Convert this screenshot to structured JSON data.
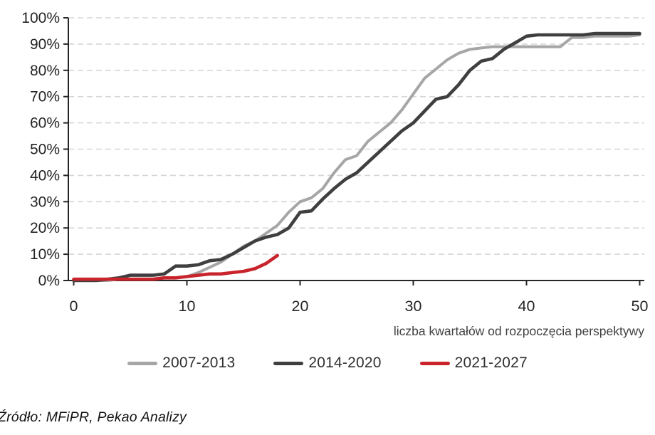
{
  "chart_data": {
    "type": "line",
    "title": "",
    "xlabel": "liczba kwartałów od rozpoczęcia perspektywy",
    "ylabel": "",
    "xlim": [
      0,
      50
    ],
    "ylim": [
      0,
      100
    ],
    "x_ticks": [
      0,
      10,
      20,
      30,
      40,
      50
    ],
    "y_ticks": [
      "0%",
      "10%",
      "20%",
      "30%",
      "40%",
      "50%",
      "60%",
      "70%",
      "80%",
      "90%",
      "100%"
    ],
    "grid": "horizontal-dashed",
    "gridline_color": "#D6D6D6",
    "axis_color": "#262626",
    "legend_position": "bottom",
    "x_unit": "quarters",
    "y_unit": "percent",
    "series": [
      {
        "name": "2007-2013",
        "color": "#A6A6A6",
        "x_start": 0,
        "values": [
          0,
          0,
          0,
          0,
          0.5,
          0.5,
          0.5,
          0.5,
          1,
          1,
          1.5,
          3,
          5,
          7,
          10,
          13,
          15,
          18,
          21,
          26,
          30,
          31.5,
          35,
          41,
          46,
          47.5,
          53,
          56.5,
          60,
          65,
          71,
          77,
          80.5,
          84,
          86.5,
          88,
          88.5,
          89,
          89,
          89,
          89,
          89,
          89,
          89,
          92.5,
          92.5,
          93,
          93,
          93,
          93,
          93.5
        ]
      },
      {
        "name": "2014-2020",
        "color": "#3F3F3F",
        "x_start": 0,
        "values": [
          0,
          0,
          0,
          0.5,
          1,
          2,
          2,
          2,
          2.5,
          5.5,
          5.5,
          6,
          7.5,
          8,
          10,
          12.5,
          15,
          16.5,
          17.5,
          20,
          26,
          26.5,
          31,
          35,
          38.5,
          41,
          45,
          49,
          53,
          57,
          60,
          64.5,
          69,
          70,
          74.5,
          80,
          83.5,
          84.5,
          88,
          90.5,
          93,
          93.5,
          93.5,
          93.5,
          93.5,
          93.5,
          94,
          94,
          94,
          94,
          94
        ]
      },
      {
        "name": "2021-2027",
        "color": "#C9242C",
        "x_start": 0,
        "values": [
          0.5,
          0.5,
          0.5,
          0.5,
          0.5,
          0.5,
          0.5,
          0.5,
          1,
          1,
          1.5,
          2,
          2.5,
          2.5,
          3,
          3.5,
          4.5,
          6.5,
          9.5
        ]
      }
    ]
  },
  "source_note": "Źródło: MFiPR, Pekao Analizy"
}
